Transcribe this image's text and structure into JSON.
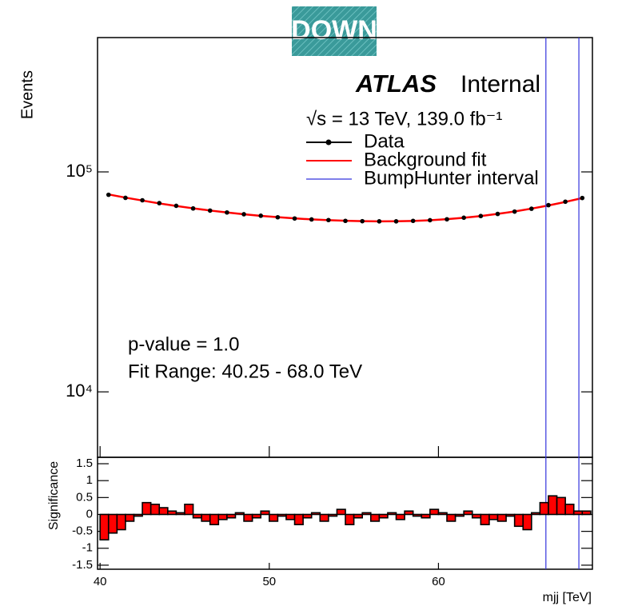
{
  "badge": "DOWN",
  "chart_data": [
    {
      "type": "line",
      "log": true,
      "ylabel": "Events",
      "experiment": "ATLAS",
      "status": "Internal",
      "energy": "√s = 13 TeV, 139.0 fb⁻¹",
      "annotations": [
        "p-value = 1.0",
        "Fit Range: 40.25 - 68.0 TeV"
      ],
      "xlim": [
        39.85,
        69.1
      ],
      "xticks": [
        40,
        50,
        60
      ],
      "ylim": [
        5040,
        408000
      ],
      "yticks": [
        {
          "value": 10000,
          "label": "10⁴"
        },
        {
          "value": 100000,
          "label": "10⁵"
        }
      ],
      "x": [
        40.5,
        41.5,
        42.5,
        43.5,
        44.5,
        45.5,
        46.5,
        47.5,
        48.5,
        49.5,
        50.5,
        51.5,
        52.5,
        53.5,
        54.5,
        55.5,
        56.5,
        57.5,
        58.5,
        59.5,
        60.5,
        61.5,
        62.5,
        63.5,
        64.5,
        65.5,
        66.5,
        67.5,
        68.5
      ],
      "series": [
        {
          "name": "Data",
          "style": "points",
          "color": "#000000",
          "values": [
            78700,
            76200,
            74300,
            72100,
            70100,
            68200,
            66700,
            65400,
            64200,
            63200,
            62200,
            61400,
            60800,
            60400,
            59900,
            59700,
            59600,
            59600,
            59900,
            60300,
            60900,
            61900,
            63000,
            64400,
            66000,
            68000,
            70600,
            73200,
            76100
          ]
        },
        {
          "name": "Background fit",
          "style": "line",
          "color": "#ff0000",
          "values": [
            79000,
            76400,
            74100,
            71900,
            70000,
            68300,
            66750,
            65400,
            64200,
            63140,
            62230,
            61460,
            60830,
            60330,
            59950,
            59700,
            59600,
            59630,
            59850,
            60300,
            60960,
            61860,
            63010,
            64420,
            66100,
            68080,
            70380,
            73020,
            76030
          ]
        }
      ],
      "interval": {
        "name": "BumpHunter interval",
        "color": "#3333dd",
        "values": [
          66.35,
          68.3
        ]
      }
    },
    {
      "type": "histogram",
      "ylabel": "Significance",
      "xlabel": "mjj [TeV]",
      "xlim": [
        39.85,
        69.1
      ],
      "xticks": [
        40,
        50,
        60
      ],
      "ylim": [
        -1.62,
        1.69
      ],
      "yticks": [
        -1.5,
        -1,
        -0.5,
        0,
        0.5,
        1,
        1.5
      ],
      "color": "#ff0000",
      "bins": [
        40,
        40.5,
        41,
        41.5,
        42,
        42.5,
        43,
        43.5,
        44,
        44.5,
        45,
        45.5,
        46,
        46.5,
        47,
        47.5,
        48,
        48.5,
        49,
        49.5,
        50,
        50.5,
        51,
        51.5,
        52,
        52.5,
        53,
        53.5,
        54,
        54.5,
        55,
        55.5,
        56,
        56.5,
        57,
        57.5,
        58,
        58.5,
        59,
        59.5,
        60,
        60.5,
        61,
        61.5,
        62,
        62.5,
        63,
        63.5,
        64,
        64.5,
        65,
        65.5,
        66,
        66.5,
        67,
        67.5,
        68,
        68.5,
        69
      ],
      "values": [
        -0.75,
        -0.55,
        -0.45,
        -0.2,
        -0.05,
        0.35,
        0.3,
        0.2,
        0.1,
        0.05,
        0.3,
        -0.1,
        -0.2,
        -0.3,
        -0.15,
        -0.1,
        0.05,
        -0.2,
        -0.1,
        0.1,
        -0.2,
        -0.05,
        -0.15,
        -0.3,
        -0.1,
        0.05,
        -0.2,
        -0.05,
        0.15,
        -0.3,
        -0.1,
        0.05,
        -0.2,
        -0.1,
        0.05,
        -0.15,
        0.1,
        -0.05,
        -0.1,
        0.15,
        0.05,
        -0.2,
        -0.05,
        0.1,
        -0.1,
        -0.3,
        -0.15,
        -0.2,
        -0.05,
        -0.35,
        -0.45,
        0.05,
        0.35,
        0.55,
        0.5,
        0.3,
        0.1,
        0.1
      ]
    }
  ]
}
